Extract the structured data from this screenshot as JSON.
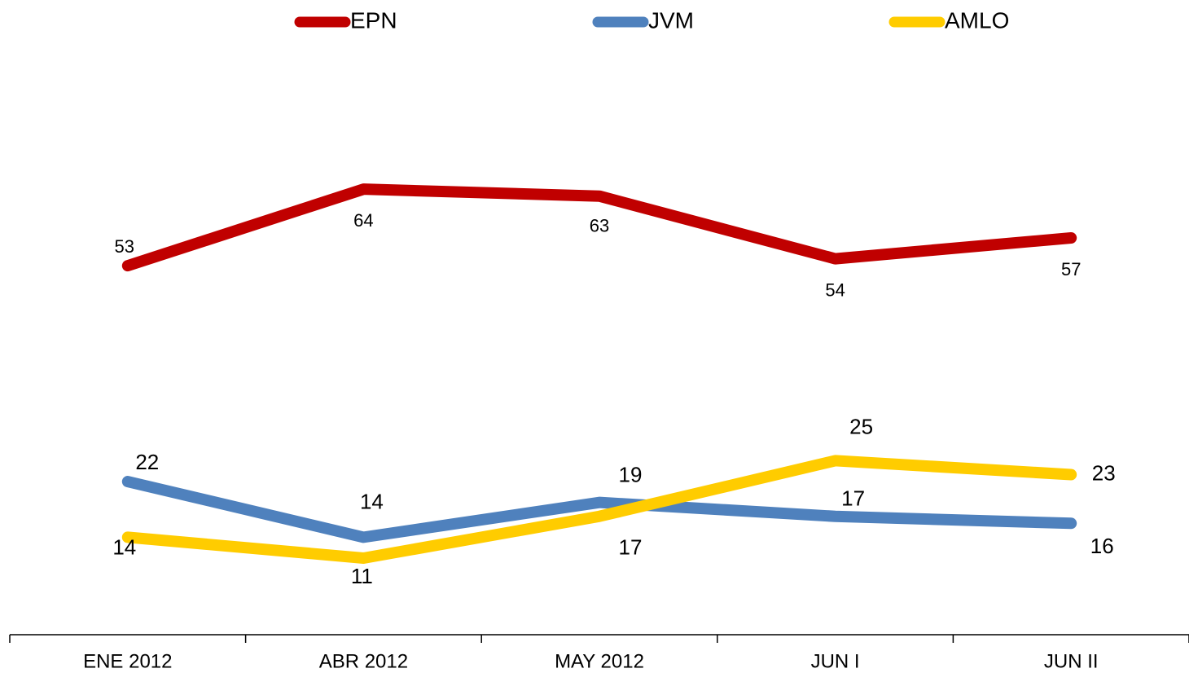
{
  "chart_data": {
    "type": "line",
    "categories": [
      "ENE 2012",
      "ABR 2012",
      "MAY 2012",
      "JUN I",
      "JUN II"
    ],
    "series": [
      {
        "name": "EPN",
        "color": "#c00000",
        "values": [
          53,
          64,
          63,
          54,
          57
        ]
      },
      {
        "name": "JVM",
        "color": "#4f81bd",
        "values": [
          22,
          14,
          19,
          17,
          16
        ]
      },
      {
        "name": "AMLO",
        "color": "#ffcc00",
        "values": [
          14,
          11,
          17,
          25,
          23
        ]
      }
    ],
    "ylim": [
      0,
      90
    ],
    "legend": "top",
    "grid": false
  }
}
